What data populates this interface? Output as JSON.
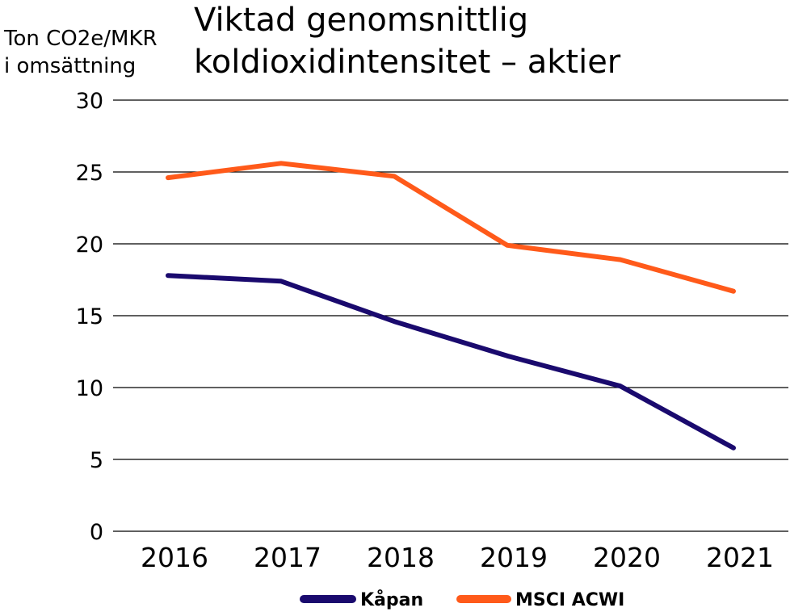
{
  "chart_data": {
    "type": "line",
    "title": [
      "Viktad genomsnittlig",
      "koldioxidintensitet – aktier"
    ],
    "ylabel": [
      "Ton CO2e/MKR",
      "i omsättning"
    ],
    "categories": [
      "2016",
      "2017",
      "2018",
      "2019",
      "2020",
      "2021"
    ],
    "ylim": [
      0,
      30
    ],
    "yticks": [
      0,
      5,
      10,
      15,
      20,
      25,
      30
    ],
    "grid": true,
    "legend_position": "bottom-center",
    "series": [
      {
        "name": "Kåpan",
        "color": "#1a0a6e",
        "values": [
          17.8,
          17.4,
          14.6,
          12.2,
          10.1,
          5.8
        ]
      },
      {
        "name": "MSCI ACWI",
        "color": "#ff5a1a",
        "values": [
          24.6,
          25.6,
          24.7,
          19.9,
          18.9,
          16.7
        ]
      }
    ]
  }
}
